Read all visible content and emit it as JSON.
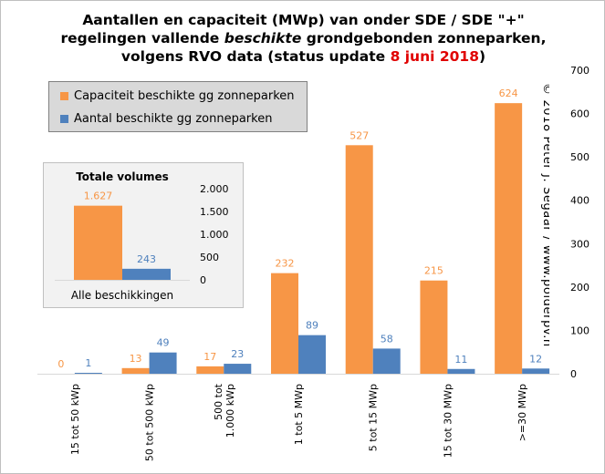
{
  "title": {
    "line1": "Aantallen en capaciteit (MWp) van onder SDE / SDE \"+\"",
    "line2_pre": "regelingen vallende ",
    "line2_em": "beschikte",
    "line2_post": " grondgebonden zonneparken,",
    "line3_pre": "volgens RVO data (status update ",
    "line3_date": "8 juni 2018",
    "line3_post": ")"
  },
  "copyright": "© 2018 Peter J. Segaar / www.polderpv.nl",
  "colors": {
    "capacity": "#f79646",
    "count": "#4f81bd",
    "date": "#e00000",
    "axis_text": "#000000"
  },
  "chart_data": [
    {
      "type": "bar",
      "categories": [
        "15 tot 50 kWp",
        "50 tot 500 kWp",
        "500 tot 1.000 kWp",
        "1 tot 5 MWp",
        "5 tot 15 MWp",
        "15 tot 30 MWp",
        ">=30 MWp"
      ],
      "series": [
        {
          "name": "Capaciteit beschikte gg zonneparken",
          "values": [
            0,
            13,
            17,
            232,
            527,
            215,
            624
          ],
          "labels": [
            "0",
            "13",
            "17",
            "232",
            "527",
            "215",
            "624"
          ]
        },
        {
          "name": "Aantal beschikte gg zonneparken",
          "values": [
            1,
            49,
            23,
            89,
            58,
            11,
            12
          ],
          "labels": [
            "1",
            "49",
            "23",
            "89",
            "58",
            "11",
            "12"
          ]
        }
      ],
      "ylim": [
        0,
        700
      ],
      "yticks": [
        0,
        100,
        200,
        300,
        400,
        500,
        600,
        700
      ],
      "ytick_labels": [
        "0",
        "100",
        "200",
        "300",
        "400",
        "500",
        "600",
        "700"
      ],
      "legend": "top-left",
      "grid": false
    },
    {
      "type": "bar",
      "title": "Totale volumes",
      "categories": [
        "Alle beschikkingen"
      ],
      "series": [
        {
          "name": "Capaciteit beschikte gg zonneparken",
          "values": [
            1627
          ],
          "labels": [
            "1.627"
          ]
        },
        {
          "name": "Aantal beschikte gg zonneparken",
          "values": [
            243
          ],
          "labels": [
            "243"
          ]
        }
      ],
      "ylim": [
        0,
        2000
      ],
      "yticks": [
        0,
        500,
        1000,
        1500,
        2000
      ],
      "ytick_labels": [
        "0",
        "500",
        "1.000",
        "1.500",
        "2.000"
      ],
      "grid": false
    }
  ]
}
